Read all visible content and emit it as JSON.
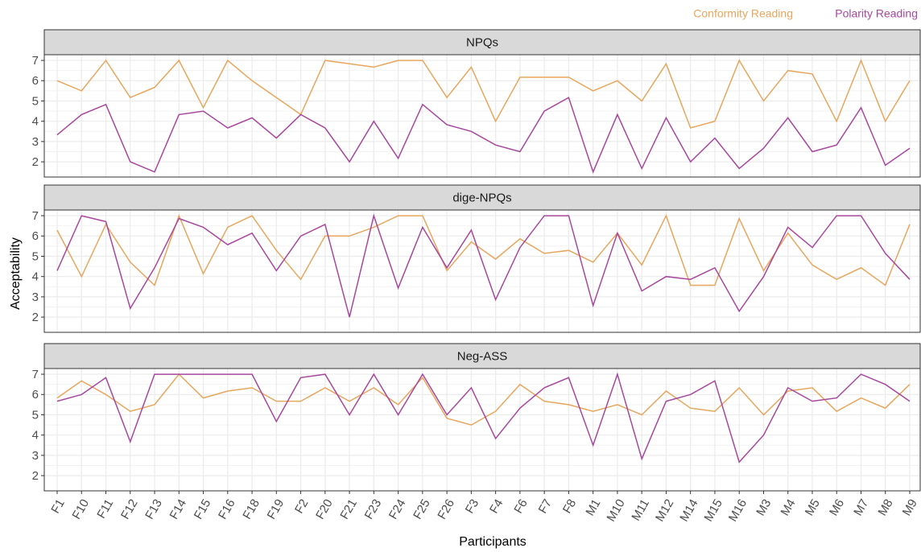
{
  "chart_data": {
    "type": "line",
    "x_label": "Participants",
    "y_label": "Acceptability",
    "categories": [
      "F1",
      "F10",
      "F11",
      "F12",
      "F13",
      "F14",
      "F15",
      "F16",
      "F18",
      "F19",
      "F2",
      "F20",
      "F21",
      "F23",
      "F24",
      "F25",
      "F26",
      "F3",
      "F4",
      "F6",
      "F7",
      "F8",
      "M1",
      "M10",
      "M11",
      "M12",
      "M14",
      "M15",
      "M16",
      "M3",
      "M4",
      "M5",
      "M6",
      "M7",
      "M8",
      "M9"
    ],
    "ylim": [
      1.25,
      7.28
    ],
    "yticks": [
      2,
      3,
      4,
      5,
      6,
      7
    ],
    "grid": true,
    "legend_position": "top-right",
    "legend": [
      {
        "name": "Conformity Reading",
        "color": "#e8a65d"
      },
      {
        "name": "Polarity Reading",
        "color": "#a8479e"
      }
    ],
    "panels": [
      {
        "title": "NPQs",
        "series": [
          {
            "values": [
              6,
              5.5,
              7,
              5.17,
              5.67,
              7,
              4.67,
              7,
              6,
              5.17,
              4.33,
              7,
              6.83,
              6.67,
              7,
              7,
              5.17,
              6.67,
              4,
              6.17,
              6.17,
              6.17,
              5.5,
              6,
              5,
              6.83,
              3.67,
              4,
              7,
              5,
              6.5,
              6.33,
              4,
              7,
              4,
              6
            ]
          },
          {
            "values": [
              3.33,
              4.33,
              4.83,
              2,
              1.5,
              4.33,
              4.5,
              3.67,
              4.17,
              3.17,
              4.33,
              3.67,
              2,
              4,
              2.17,
              4.83,
              3.83,
              3.5,
              2.83,
              2.5,
              4.5,
              5.17,
              1.5,
              4.33,
              1.67,
              4.17,
              2,
              3.17,
              1.67,
              2.67,
              4.17,
              2.5,
              2.83,
              4.67,
              1.83,
              2.67
            ]
          }
        ]
      },
      {
        "title": "dige-NPQs",
        "series": [
          {
            "values": [
              6.29,
              4,
              6.57,
              4.71,
              3.57,
              7,
              4.14,
              6.43,
              7,
              5.29,
              3.86,
              6,
              6,
              6.43,
              7,
              7,
              4.29,
              5.71,
              4.86,
              5.86,
              5.14,
              5.29,
              4.71,
              6.14,
              4.57,
              7,
              3.57,
              3.57,
              6.86,
              4.29,
              6.14,
              4.57,
              3.86,
              4.43,
              3.57,
              6.57
            ]
          },
          {
            "values": [
              4.29,
              7,
              6.71,
              2.43,
              4.43,
              6.86,
              6.43,
              5.57,
              6.14,
              4.29,
              6,
              6.57,
              2,
              7,
              3.43,
              6.43,
              4.43,
              6.29,
              2.86,
              5.43,
              7,
              7,
              2.57,
              6.14,
              3.29,
              4,
              3.86,
              4.43,
              2.29,
              4,
              6.43,
              5.43,
              7,
              7,
              5.14,
              3.86
            ]
          }
        ]
      },
      {
        "title": "Neg-ASS",
        "series": [
          {
            "values": [
              5.83,
              6.67,
              6,
              5.17,
              5.5,
              7,
              5.83,
              6.17,
              6.33,
              5.67,
              5.67,
              6.33,
              5.67,
              6.33,
              5.5,
              6.83,
              4.83,
              4.5,
              5.17,
              6.5,
              5.67,
              5.5,
              5.17,
              5.5,
              5,
              6.17,
              5.33,
              5.17,
              6.33,
              5,
              6.17,
              6.33,
              5.17,
              5.83,
              5.33,
              6.5
            ]
          },
          {
            "values": [
              5.67,
              6,
              6.83,
              3.67,
              7,
              7,
              7,
              7,
              7,
              4.67,
              6.83,
              7,
              5,
              7,
              5,
              7,
              5,
              6.33,
              3.83,
              5.33,
              6.33,
              6.83,
              3.5,
              7,
              2.83,
              5.67,
              6,
              6.67,
              2.67,
              4,
              6.33,
              5.67,
              5.83,
              7,
              6.5,
              5.67
            ]
          }
        ]
      }
    ]
  }
}
